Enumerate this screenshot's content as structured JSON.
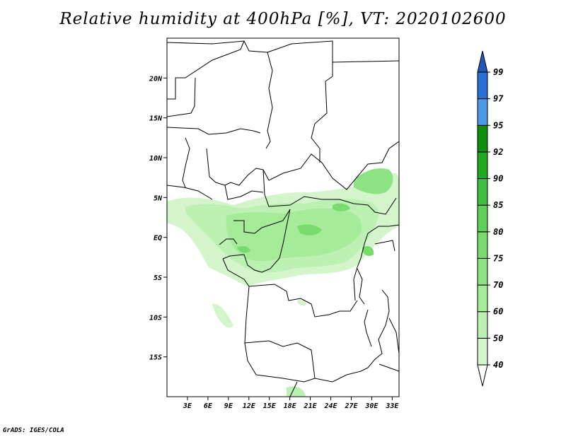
{
  "title": "Relative humidity at 400hPa [%], VT: 2020102600",
  "credit": "GrADS: IGES/COLA",
  "map": {
    "projection": "latlon",
    "lon_range": [
      0,
      34
    ],
    "lat_range": [
      -20,
      25
    ],
    "lon_ticks": [
      "3E",
      "6E",
      "9E",
      "12E",
      "15E",
      "18E",
      "21E",
      "24E",
      "27E",
      "30E",
      "33E"
    ],
    "lat_ticks": [
      "20N",
      "15N",
      "10N",
      "5N",
      "EQ",
      "5S",
      "10S",
      "15S"
    ],
    "field": "relative humidity 400hPa",
    "units": "%",
    "shaded_regions": [
      {
        "name": "gulf-band",
        "level": 40
      },
      {
        "name": "central-africa-band",
        "level": 50
      },
      {
        "name": "congo-core",
        "level": 60
      },
      {
        "name": "east-band",
        "level": 70
      },
      {
        "name": "core-patches",
        "level": 75
      }
    ]
  },
  "colorbar": {
    "levels": [
      "40",
      "50",
      "60",
      "70",
      "75",
      "80",
      "85",
      "90",
      "92",
      "95",
      "97",
      "99"
    ],
    "colors": [
      "#ebfbe6",
      "#d4f5cc",
      "#bdf0b3",
      "#a6eb99",
      "#8de384",
      "#78db6b",
      "#5ed15a",
      "#3fbe3f",
      "#1fab1f",
      "#0e8e0e",
      "#4f9ae8",
      "#2a6fd6",
      "#1f58b8"
    ],
    "triangle_top_color": "#1f58b8",
    "triangle_bottom_color": "#ffffff"
  }
}
